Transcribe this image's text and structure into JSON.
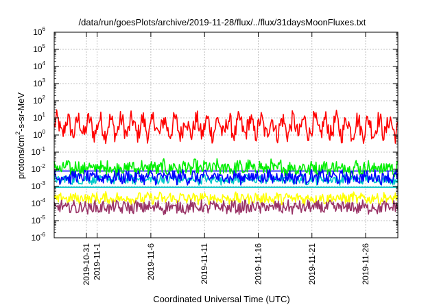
{
  "chart_data": {
    "type": "line",
    "title": "/data/run/goesPlots/archive/2019-11-28/flux/../flux/31daysMoonFluxes.txt",
    "xlabel": "Coordinated Universal Time (UTC)",
    "ylabel_parts": {
      "base": "protons/cm",
      "sup": "2",
      "rest": "-s-sr-MeV"
    },
    "y_scale": "log",
    "ylim": [
      1e-06,
      1000000.0
    ],
    "y_ticks": [
      {
        "base": "10",
        "exp": "-6"
      },
      {
        "base": "10",
        "exp": "-5"
      },
      {
        "base": "10",
        "exp": "-4"
      },
      {
        "base": "10",
        "exp": "-3"
      },
      {
        "base": "10",
        "exp": "-2"
      },
      {
        "base": "10",
        "exp": "-1"
      },
      {
        "base": "10",
        "exp": "0"
      },
      {
        "base": "10",
        "exp": "1"
      },
      {
        "base": "10",
        "exp": "2"
      },
      {
        "base": "10",
        "exp": "3"
      },
      {
        "base": "10",
        "exp": "4"
      },
      {
        "base": "10",
        "exp": "5"
      },
      {
        "base": "10",
        "exp": "6"
      }
    ],
    "xlim": [
      "2019-10-28",
      "2019-11-29"
    ],
    "x_ticks": [
      "2019-10-31",
      "2019-11-1",
      "2019-11-6",
      "2019-11-11",
      "2019-11-16",
      "2019-11-21",
      "2019-11-26"
    ],
    "grid": true,
    "series": [
      {
        "color": "#ff0000",
        "level": 3.0,
        "spread": 0.55,
        "diurnal": 0.45
      },
      {
        "color": "#00ee00",
        "level": 0.012,
        "spread": 0.4,
        "diurnal": 0.15
      },
      {
        "color": "#00c8c8",
        "level": 0.0025,
        "spread": 0.25,
        "diurnal": 0.08
      },
      {
        "color": "#0000ff",
        "level": 0.0035,
        "spread": 0.35,
        "diurnal": 0.12
      },
      {
        "color": "#ffff00",
        "level": 0.0002,
        "spread": 0.3,
        "diurnal": 0.1
      },
      {
        "color": "#993366",
        "level": 6e-05,
        "spread": 0.35,
        "diurnal": 0.1
      }
    ],
    "reference_lines": [
      {
        "color": "#00c8c8",
        "value": 0.0009
      },
      {
        "color": "#0000ff",
        "value": 0.0079
      }
    ]
  }
}
